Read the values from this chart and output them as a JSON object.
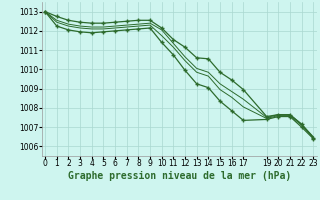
{
  "title": "Graphe pression niveau de la mer (hPa)",
  "background_color": "#cef5ef",
  "grid_color": "#aad8d0",
  "line_color": "#2d6b2d",
  "x_all": [
    0,
    1,
    2,
    3,
    4,
    5,
    6,
    7,
    8,
    9,
    10,
    11,
    12,
    13,
    14,
    15,
    16,
    17,
    19,
    20,
    21,
    22,
    23
  ],
  "ylim": [
    1005.5,
    1013.5
  ],
  "yticks": [
    1006,
    1007,
    1008,
    1009,
    1010,
    1011,
    1012,
    1013
  ],
  "series": [
    [
      1013.0,
      1012.75,
      1012.55,
      1012.45,
      1012.4,
      1012.4,
      1012.45,
      1012.5,
      1012.55,
      1012.55,
      1012.15,
      1011.55,
      1011.15,
      1010.6,
      1010.55,
      1009.85,
      1009.45,
      1008.95,
      1007.55,
      1007.65,
      1007.65,
      1007.15,
      1006.45
    ],
    [
      1013.0,
      1012.55,
      1012.35,
      1012.25,
      1012.2,
      1012.2,
      1012.25,
      1012.3,
      1012.35,
      1012.4,
      1012.05,
      1011.35,
      1010.65,
      1010.05,
      1009.85,
      1009.25,
      1008.85,
      1008.45,
      1007.5,
      1007.65,
      1007.65,
      1007.15,
      1006.5
    ],
    [
      1013.0,
      1012.45,
      1012.25,
      1012.15,
      1012.1,
      1012.1,
      1012.15,
      1012.2,
      1012.25,
      1012.3,
      1011.75,
      1011.15,
      1010.45,
      1009.85,
      1009.65,
      1008.95,
      1008.55,
      1008.05,
      1007.45,
      1007.6,
      1007.6,
      1007.1,
      1006.45
    ],
    [
      1013.0,
      1012.25,
      1012.05,
      1011.95,
      1011.9,
      1011.95,
      1012.0,
      1012.05,
      1012.1,
      1012.15,
      1011.4,
      1010.75,
      1009.95,
      1009.25,
      1009.05,
      1008.35,
      1007.85,
      1007.35,
      1007.4,
      1007.55,
      1007.55,
      1007.0,
      1006.4
    ]
  ],
  "marked_series": [
    0,
    3
  ],
  "xlim": [
    -0.3,
    23.3
  ],
  "tick_fontsize": 5.5,
  "title_fontsize": 7.0
}
